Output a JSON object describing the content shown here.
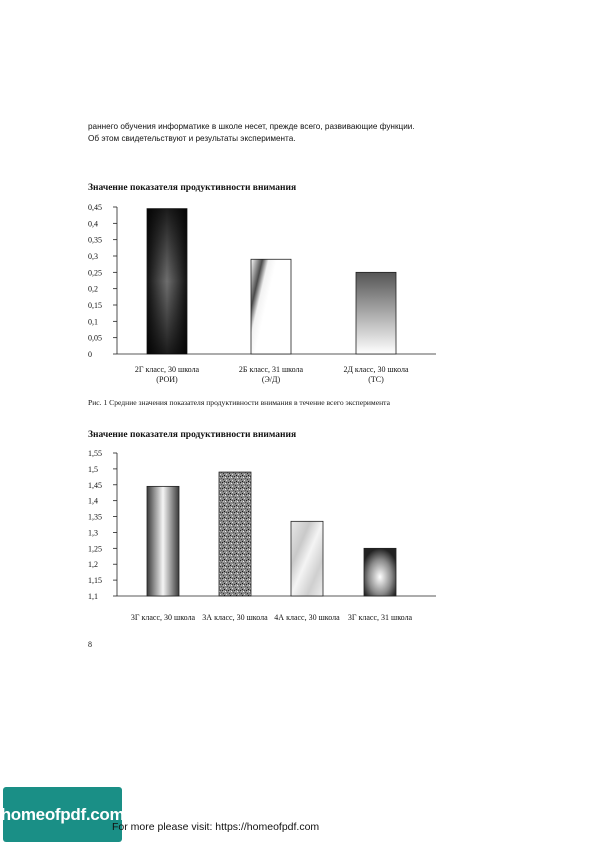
{
  "intro": {
    "line1": "раннего обучения информатике в школе несет, прежде всего, развивающие функции.",
    "line2": "Об этом свидетельствуют и результаты эксперимента."
  },
  "caption1": "Рис. 1  Средние значения показателя продуктивности внимания в течение всего эксперимента",
  "page_number": "8",
  "footer_text": "For more please visit: https://homeofpdf.com",
  "logo_text": "homeofpdf.com",
  "chart_data": [
    {
      "type": "bar",
      "title": "Значение показателя продуктивности внимания",
      "ylim": [
        0,
        0.45
      ],
      "yticks": [
        "0",
        "0,05",
        "0,1",
        "0,15",
        "0,2",
        "0,25",
        "0,3",
        "0,35",
        "0,4",
        "0,45"
      ],
      "categories": [
        [
          "2Г класс, 30 школа",
          "(РОИ)"
        ],
        [
          "2Б класс, 31 школа",
          "(Э/Д)"
        ],
        [
          "2Д класс, 30 школа",
          "(ТС)"
        ]
      ],
      "values": [
        0.445,
        0.29,
        0.25
      ],
      "fills": [
        "dark-hourglass",
        "diagonal-stripes",
        "vertical-fade"
      ],
      "grid": false
    },
    {
      "type": "bar",
      "title": "Значение показателя продуктивности внимания",
      "ylim": [
        1.1,
        1.55
      ],
      "yticks": [
        "1,1",
        "1,15",
        "1,2",
        "1,25",
        "1,3",
        "1,35",
        "1,4",
        "1,45",
        "1,5",
        "1,55"
      ],
      "categories": [
        [
          "3Г класс, 30 школа"
        ],
        [
          "3А класс, 30 школа"
        ],
        [
          "4А класс, 30 школа"
        ],
        [
          "3Г класс, 31 школа"
        ]
      ],
      "values": [
        1.445,
        1.49,
        1.335,
        1.25
      ],
      "fills": [
        "cylinder-gradient",
        "granite",
        "marble",
        "dark-radial"
      ],
      "grid": false
    }
  ]
}
